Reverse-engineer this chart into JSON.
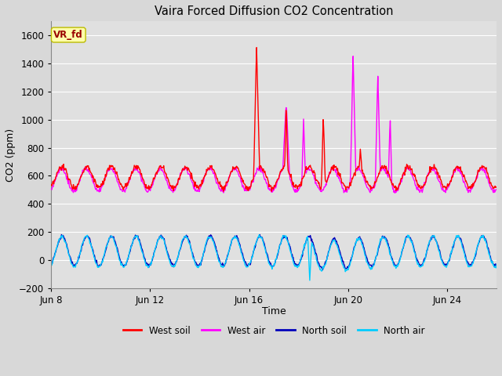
{
  "title": "Vaira Forced Diffusion CO2 Concentration",
  "xlabel": "Time",
  "ylabel": "CO2 (ppm)",
  "ylim": [
    -200,
    1700
  ],
  "yticks": [
    -200,
    0,
    200,
    400,
    600,
    800,
    1000,
    1200,
    1400,
    1600
  ],
  "xlim": [
    8,
    26
  ],
  "xtick_days": [
    8,
    12,
    16,
    20,
    24
  ],
  "xtick_labels": [
    "Jun 8",
    "Jun 12",
    "Jun 16",
    "Jun 20",
    "Jun 24"
  ],
  "legend_entries": [
    "West soil",
    "West air",
    "North soil",
    "North air"
  ],
  "legend_colors": [
    "#ff0000",
    "#ff00ff",
    "#0000bb",
    "#00ccff"
  ],
  "vr_fd_label": "VR_fd",
  "vr_fd_bg": "#ffffaa",
  "vr_fd_text_color": "#990000",
  "fig_bg_color": "#d8d8d8",
  "plot_bg_color": "#e0e0e0",
  "grid_color": "#ffffff",
  "west_soil_color": "#ff0000",
  "west_air_color": "#ff00ff",
  "north_soil_color": "#0000bb",
  "north_air_color": "#00ccff",
  "line_width": 1.0
}
